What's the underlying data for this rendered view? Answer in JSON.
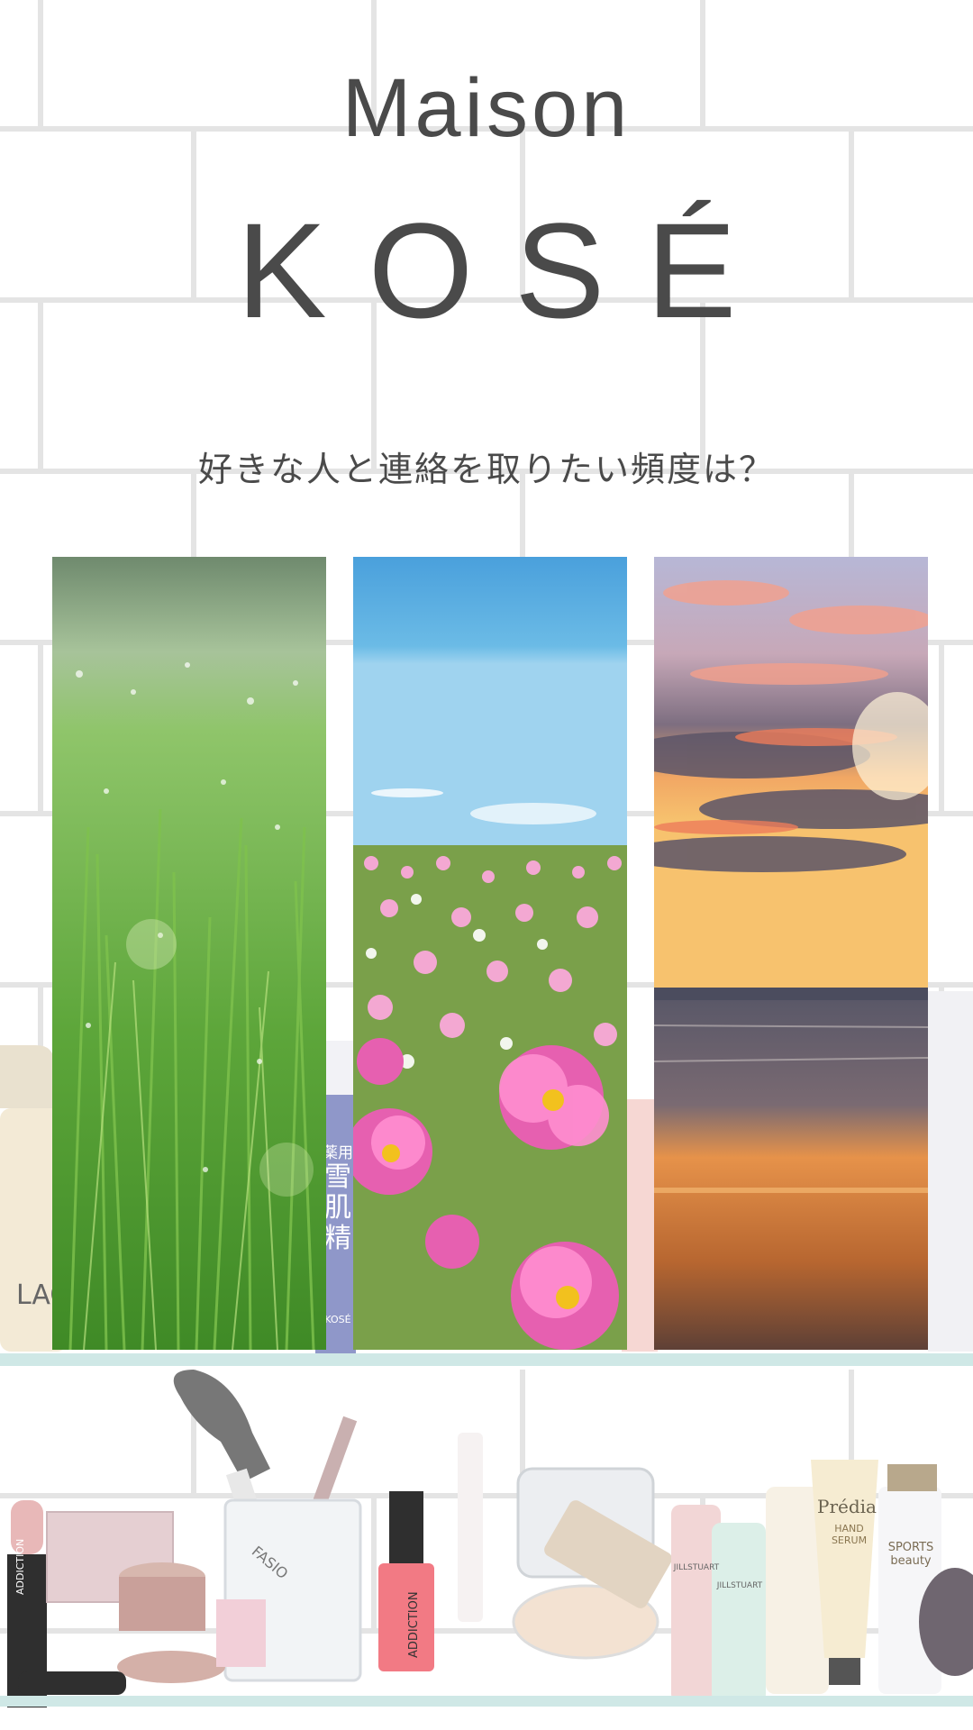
{
  "brand": {
    "line1": "Maison",
    "line2": "KOSÉ"
  },
  "question": "好きな人と連絡を取りたい頻度は？",
  "choices": [
    {
      "id": "grass",
      "scene": "dewy green grass"
    },
    {
      "id": "cosmos",
      "scene": "pink cosmos field under blue sky"
    },
    {
      "id": "sunset",
      "scene": "sunset over the sea"
    }
  ],
  "colors": {
    "text": "#4a4a4a",
    "tile_line": "#e6e6e6",
    "shelf": "#cfe8e6"
  },
  "products": {
    "lipstick_1": "ADDICTION",
    "nail_polish": "ADDICTION",
    "cup_label": "FASIO",
    "serum_1": "JILLSTUART",
    "serum_2": "JILLSTUART",
    "hand_serum_brand": "Prédia",
    "hand_serum_label": "HAND SERUM",
    "sports_beauty": "SPORTS beauty",
    "sekkisei_1": "薬用",
    "sekkisei_2": "雪肌精",
    "sekkisei_brand": "KOSÉ",
    "lachesca": "LACH"
  }
}
